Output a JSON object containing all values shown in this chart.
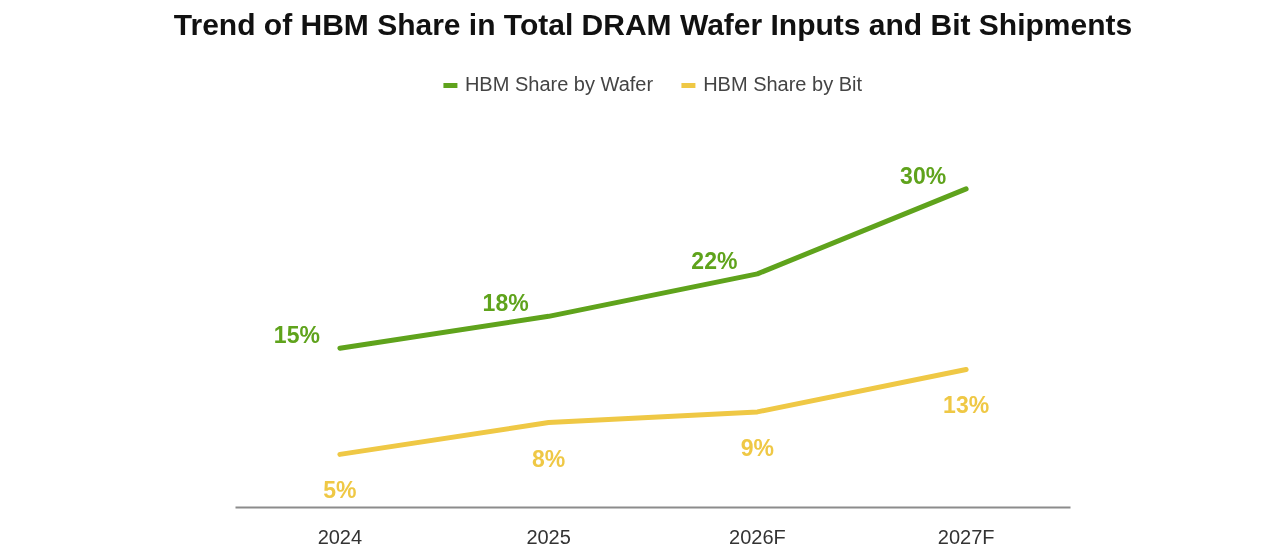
{
  "chart_data": {
    "type": "line",
    "title": "Trend of HBM Share in Total DRAM Wafer Inputs and Bit Shipments",
    "categories": [
      "2024",
      "2025",
      "2026F",
      "2027F"
    ],
    "series": [
      {
        "name": "HBM Share by Wafer",
        "color": "#5fa31c",
        "values": [
          15,
          18,
          22,
          30
        ],
        "value_labels": [
          "15%",
          "18%",
          "22%",
          "30%"
        ]
      },
      {
        "name": "HBM Share by Bit",
        "color": "#efc845",
        "values": [
          5,
          8,
          9,
          13
        ],
        "value_labels": [
          "5%",
          "8%",
          "9%",
          "13%"
        ]
      }
    ],
    "tick_labels": "x",
    "legend": "top",
    "grid": false
  }
}
